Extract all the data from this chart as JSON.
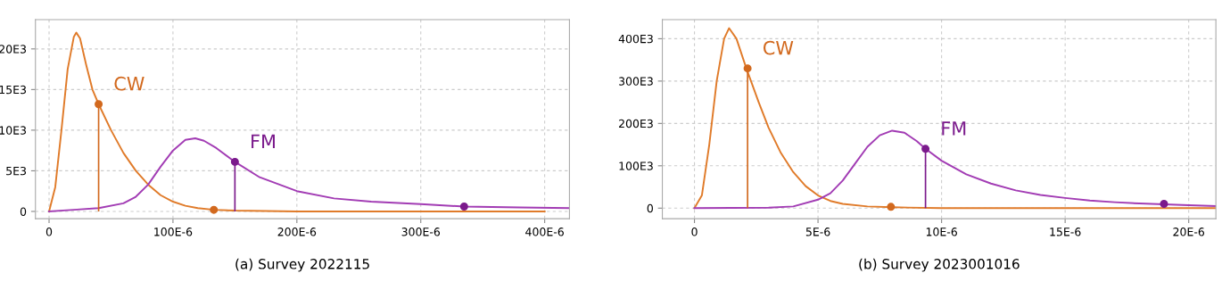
{
  "chart_data": [
    {
      "type": "line",
      "annotations": [
        "(a) Survey 2022115"
      ],
      "grid": true,
      "marker": "none",
      "xlim": [
        -1.1e-05,
        0.00042
      ],
      "ylim": [
        -900,
        23600
      ],
      "xticks": [
        0,
        {
          "value": 0.0001,
          "label": "100E-6"
        },
        {
          "value": 0.0002,
          "label": "200E-6"
        },
        {
          "value": 0.0003,
          "label": "300E-6"
        },
        {
          "value": 0.0004,
          "label": "400E-6"
        }
      ],
      "yticks": [
        0,
        {
          "value": 5000,
          "label": "5E3"
        },
        {
          "value": 10000,
          "label": "10E3"
        },
        {
          "value": 15000,
          "label": "15E3"
        },
        {
          "value": 20000,
          "label": "20E3"
        }
      ],
      "series": [
        {
          "color": "#e07b2a",
          "x": [
            0,
            5e-06,
            1e-05,
            1.5e-05,
            2e-05,
            2.2e-05,
            2.5e-05,
            3e-05,
            3.5e-05,
            4e-05,
            5e-05,
            6e-05,
            7e-05,
            8e-05,
            9e-05,
            0.0001,
            0.00011,
            0.00012,
            0.000133,
            0.00015,
            0.0002,
            0.0003,
            0.0004
          ],
          "values": [
            0,
            3000,
            10000,
            17500,
            21500,
            22000,
            21300,
            18000,
            15000,
            13200,
            10000,
            7200,
            5000,
            3300,
            2000,
            1200,
            700,
            400,
            200,
            100,
            0,
            0,
            0
          ]
        },
        {
          "color": "#a23cb4",
          "x": [
            0,
            2e-05,
            4e-05,
            6e-05,
            7e-05,
            8e-05,
            9e-05,
            0.0001,
            0.00011,
            0.000118,
            0.000125,
            0.000135,
            0.00015,
            0.00017,
            0.0002,
            0.00023,
            0.00026,
            0.0003,
            0.000335,
            0.00038,
            0.00042
          ],
          "values": [
            0,
            200,
            400,
            1000,
            1800,
            3300,
            5500,
            7500,
            8800,
            9000,
            8700,
            7800,
            6100,
            4200,
            2500,
            1600,
            1200,
            900,
            600,
            500,
            400
          ]
        },
        {
          "type": "lollipop",
          "name": "CW",
          "color": "#d2691e",
          "x": [
            4e-05
          ],
          "values": [
            13200
          ]
        },
        {
          "type": "scatter",
          "color": "#d2691e",
          "x": [
            0.000133
          ],
          "values": [
            200
          ]
        },
        {
          "type": "lollipop",
          "name": "FM",
          "color": "#7b1a8c",
          "x": [
            0.00015
          ],
          "values": [
            6100
          ]
        },
        {
          "type": "scatter",
          "color": "#7b1a8c",
          "x": [
            0.000335
          ],
          "values": [
            600
          ]
        }
      ]
    },
    {
      "type": "line",
      "annotations": [
        "(b) Survey 2023001016"
      ],
      "grid": true,
      "marker": "none",
      "xlim": [
        -1.3e-06,
        2.11e-05
      ],
      "ylim": [
        -25000,
        445000
      ],
      "xticks": [
        0,
        {
          "value": 5e-06,
          "label": "5E-6"
        },
        {
          "value": 1e-05,
          "label": "10E-6"
        },
        {
          "value": 1.5e-05,
          "label": "15E-6"
        },
        {
          "value": 2e-05,
          "label": "20E-6"
        }
      ],
      "yticks": [
        0,
        {
          "value": 100000,
          "label": "100E3"
        },
        {
          "value": 200000,
          "label": "200E3"
        },
        {
          "value": 300000,
          "label": "300E3"
        },
        {
          "value": 400000,
          "label": "400E3"
        }
      ],
      "series": [
        {
          "color": "#e07b2a",
          "x": [
            0,
            3e-07,
            6e-07,
            9e-07,
            1.2e-06,
            1.4e-06,
            1.7e-06,
            2.1e-06,
            2.6e-06,
            3e-06,
            3.5e-06,
            4e-06,
            4.5e-06,
            5e-06,
            5.5e-06,
            6e-06,
            7e-06,
            8e-06,
            1e-05,
            1.5e-05,
            2.11e-05
          ],
          "values": [
            0,
            30000,
            150000,
            300000,
            400000,
            425000,
            400000,
            330000,
            250000,
            190000,
            130000,
            85000,
            52000,
            30000,
            17000,
            10000,
            4000,
            2000,
            0,
            0,
            0
          ]
        },
        {
          "color": "#a23cb4",
          "x": [
            0,
            3e-06,
            4e-06,
            5e-06,
            5.5e-06,
            6e-06,
            6.5e-06,
            7e-06,
            7.5e-06,
            8e-06,
            8.5e-06,
            9e-06,
            9.35e-06,
            1e-05,
            1.1e-05,
            1.2e-05,
            1.3e-05,
            1.4e-05,
            1.5e-05,
            1.6e-05,
            1.7e-05,
            1.8e-05,
            1.9e-05,
            2e-05,
            2.11e-05
          ],
          "values": [
            0,
            1000,
            4000,
            20000,
            35000,
            65000,
            105000,
            145000,
            172000,
            183000,
            178000,
            158000,
            140000,
            112000,
            80000,
            58000,
            42000,
            31000,
            24000,
            18000,
            14000,
            11000,
            9000,
            7000,
            5000
          ]
        },
        {
          "type": "lollipop",
          "name": "CW",
          "color": "#d2691e",
          "x": [
            2.15e-06
          ],
          "values": [
            330000
          ]
        },
        {
          "type": "scatter",
          "color": "#d2691e",
          "x": [
            7.95e-06
          ],
          "values": [
            3000
          ]
        },
        {
          "type": "lollipop",
          "name": "FM",
          "color": "#7b1a8c",
          "x": [
            9.35e-06
          ],
          "values": [
            140000
          ]
        },
        {
          "type": "scatter",
          "color": "#7b1a8c",
          "x": [
            1.9e-05
          ],
          "values": [
            10000
          ]
        }
      ]
    }
  ]
}
